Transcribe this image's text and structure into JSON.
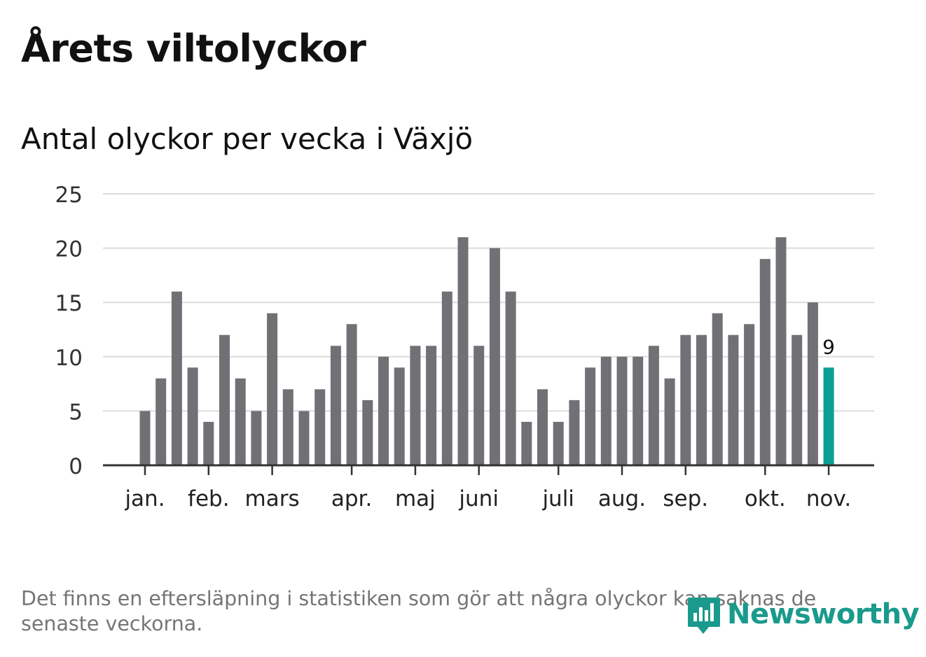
{
  "title": "Årets viltolyckor",
  "subtitle": "Antal olyckor per vecka i Växjö",
  "note": "Det finns en eftersläpning i statistiken som gör att några olyckor kan saknas de senaste veckorna.",
  "logo": {
    "text": "Newsworthy",
    "icon": "newsworthy-logo-icon"
  },
  "colors": {
    "bar": "#707075",
    "highlight": "#0aa096",
    "grid": "#dcdcdc",
    "axis": "#333333",
    "logo": "#1a9a8c"
  },
  "chart_data": {
    "type": "bar",
    "title": "Antal olyckor per vecka i Växjö",
    "xlabel": "",
    "ylabel": "",
    "ylim": [
      0,
      25
    ],
    "y_ticks": [
      0,
      5,
      10,
      15,
      20,
      25
    ],
    "grid": true,
    "values": [
      5,
      8,
      16,
      9,
      4,
      12,
      8,
      5,
      14,
      7,
      5,
      7,
      11,
      13,
      6,
      10,
      9,
      11,
      11,
      16,
      21,
      11,
      20,
      16,
      4,
      7,
      4,
      6,
      9,
      10,
      10,
      10,
      11,
      8,
      12,
      12,
      14,
      12,
      13,
      19,
      21,
      12,
      15,
      9
    ],
    "highlight_index": 43,
    "highlight_label": "9",
    "month_labels": [
      {
        "label": "jan.",
        "bar_index": 0
      },
      {
        "label": "feb.",
        "bar_index": 4
      },
      {
        "label": "mars",
        "bar_index": 8
      },
      {
        "label": "apr.",
        "bar_index": 13
      },
      {
        "label": "maj",
        "bar_index": 17
      },
      {
        "label": "juni",
        "bar_index": 21
      },
      {
        "label": "juli",
        "bar_index": 26
      },
      {
        "label": "aug.",
        "bar_index": 30
      },
      {
        "label": "sep.",
        "bar_index": 34
      },
      {
        "label": "okt.",
        "bar_index": 39
      },
      {
        "label": "nov.",
        "bar_index": 43
      }
    ]
  }
}
